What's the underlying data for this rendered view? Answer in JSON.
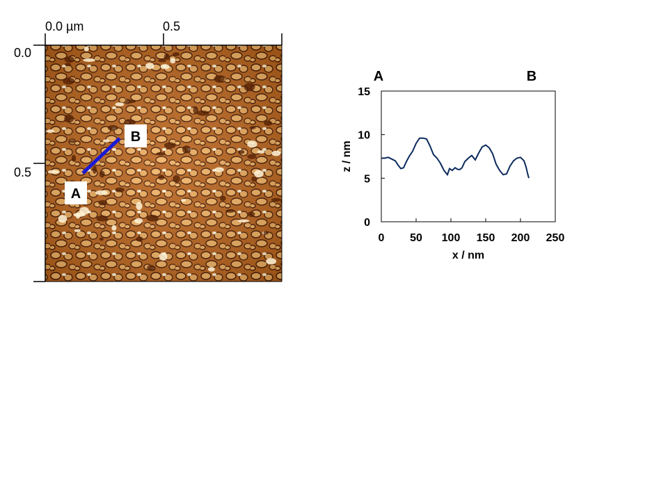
{
  "afm_image": {
    "x_ticks": [
      "0.0 µm",
      "0.5"
    ],
    "y_ticks": [
      "0.0",
      "0.5"
    ],
    "markers": {
      "start": "A",
      "end": "B"
    },
    "line_color": "#1a1ad6",
    "colors": {
      "dark": "#4a1a00",
      "mid": "#b8621a",
      "light": "#f0b060",
      "highlight": "#fff4d8"
    }
  },
  "profile": {
    "end_labels": {
      "left": "A",
      "right": "B"
    },
    "line_color": "#0b2a5c"
  },
  "chart_data": {
    "type": "line",
    "title": "",
    "xlabel": "x / nm",
    "ylabel": "z / nm",
    "xlim": [
      0,
      250
    ],
    "ylim": [
      0,
      15
    ],
    "x_ticks": [
      0,
      50,
      100,
      150,
      200,
      250
    ],
    "y_ticks": [
      0,
      5,
      10,
      15
    ],
    "grid": false,
    "series": [
      {
        "x": [
          0,
          5,
          10,
          15,
          20,
          25,
          28,
          32,
          36,
          40,
          45,
          50,
          55,
          60,
          65,
          70,
          75,
          80,
          85,
          90,
          95,
          98,
          102,
          106,
          110,
          113,
          116,
          120,
          125,
          130,
          135,
          140,
          145,
          150,
          155,
          160,
          165,
          170,
          175,
          180,
          185,
          190,
          195,
          200,
          205,
          208,
          210,
          212
        ],
        "y": [
          7.3,
          7.3,
          7.4,
          7.2,
          7.0,
          6.4,
          6.1,
          6.2,
          6.9,
          7.5,
          8.1,
          9.0,
          9.6,
          9.6,
          9.5,
          8.7,
          7.7,
          7.3,
          6.7,
          5.9,
          5.4,
          6.1,
          5.9,
          6.2,
          6.0,
          6.0,
          6.2,
          6.9,
          7.3,
          7.6,
          7.1,
          7.9,
          8.6,
          8.8,
          8.5,
          7.8,
          6.6,
          5.9,
          5.4,
          5.5,
          6.4,
          7.0,
          7.3,
          7.4,
          7.0,
          6.3,
          5.6,
          5.0
        ]
      }
    ]
  }
}
